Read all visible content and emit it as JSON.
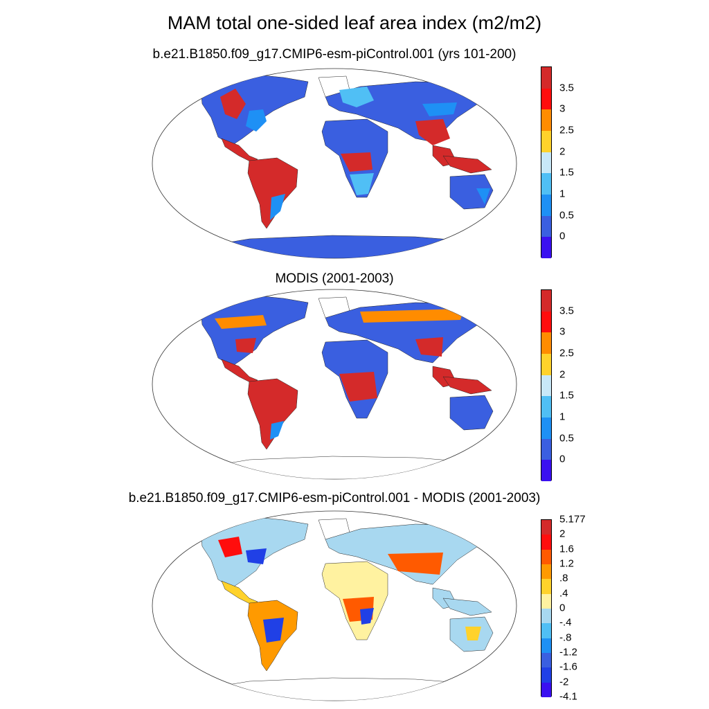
{
  "figure": {
    "title": "MAM total one-sided leaf area index (m2/m2)"
  },
  "panels": [
    {
      "id": "model",
      "title": "b.e21.B1850.f09_g17.CMIP6-esm-piControl.001 (yrs 101-200)"
    },
    {
      "id": "obs",
      "title": "MODIS (2001-2003)"
    },
    {
      "id": "diff",
      "title": "b.e21.B1850.f09_g17.CMIP6-esm-piControl.001 - MODIS (2001-2003)"
    }
  ],
  "colorbars": {
    "lai": {
      "colors": [
        "#3a10f0",
        "#3a5fe0",
        "#1e90f5",
        "#50bff5",
        "#c8e8f8",
        "#ffd22b",
        "#ff8c00",
        "#ff0d0d",
        "#d42a2a"
      ],
      "labels": [
        "0",
        "0.5",
        "1",
        "1.5",
        "2",
        "2.5",
        "3",
        "3.5"
      ]
    },
    "diff": {
      "colors": [
        "#3a10f0",
        "#2040e6",
        "#3a5fe0",
        "#1e90f5",
        "#50bff5",
        "#a8d8f0",
        "#fff2a0",
        "#ffd22b",
        "#ff9a00",
        "#ff5a00",
        "#ff0d0d",
        "#d42a2a"
      ],
      "labels": [
        "-4.1",
        "-2",
        "-1.6",
        "-1.2",
        "-.8",
        "-.4",
        "0",
        ".4",
        ".8",
        "1.2",
        "1.6",
        "2",
        "5.177"
      ]
    }
  }
}
